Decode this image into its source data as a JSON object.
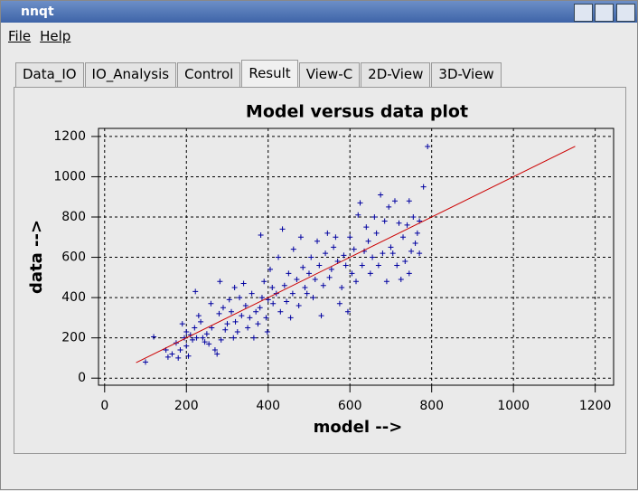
{
  "window": {
    "title": "nnqt",
    "menu": [
      "File",
      "Help"
    ],
    "tabs": [
      "Data_IO",
      "IO_Analysis",
      "Control",
      "Result",
      "View-C",
      "2D-View",
      "3D-View"
    ],
    "active_tab": "Result"
  },
  "chart_data": {
    "type": "scatter",
    "title": "Model versus data plot",
    "x_label": "model -->",
    "y_label": "data -->",
    "xlim": [
      -15,
      1245
    ],
    "ylim": [
      -35,
      1240
    ],
    "xticks": [
      0,
      200,
      400,
      600,
      800,
      1000,
      1200
    ],
    "yticks": [
      0,
      200,
      400,
      600,
      800,
      1000,
      1200
    ],
    "grid": true,
    "series": [
      {
        "mode": "markers",
        "color": "#0000a0",
        "x": [
          100,
          120,
          150,
          155,
          165,
          175,
          180,
          185,
          190,
          195,
          200,
          200,
          205,
          210,
          215,
          220,
          222,
          225,
          230,
          235,
          240,
          245,
          250,
          255,
          260,
          262,
          270,
          275,
          280,
          282,
          285,
          290,
          295,
          300,
          305,
          310,
          315,
          318,
          320,
          325,
          330,
          335,
          340,
          345,
          350,
          355,
          360,
          365,
          370,
          375,
          380,
          382,
          385,
          390,
          395,
          398,
          400,
          405,
          410,
          412,
          420,
          425,
          430,
          435,
          440,
          445,
          450,
          455,
          460,
          462,
          470,
          475,
          480,
          485,
          490,
          495,
          500,
          505,
          510,
          515,
          520,
          525,
          530,
          535,
          540,
          545,
          550,
          555,
          560,
          565,
          570,
          575,
          580,
          585,
          590,
          595,
          600,
          605,
          610,
          615,
          620,
          625,
          630,
          635,
          640,
          645,
          650,
          655,
          660,
          665,
          670,
          675,
          680,
          685,
          690,
          695,
          700,
          705,
          710,
          715,
          720,
          725,
          730,
          735,
          740,
          745,
          750,
          755,
          760,
          765,
          770,
          780,
          790,
          770,
          745
        ],
        "values": [
          80,
          205,
          140,
          105,
          120,
          175,
          100,
          140,
          270,
          200,
          160,
          230,
          110,
          215,
          190,
          250,
          430,
          200,
          310,
          280,
          200,
          180,
          220,
          170,
          370,
          250,
          140,
          120,
          320,
          480,
          190,
          350,
          240,
          270,
          390,
          330,
          200,
          450,
          280,
          230,
          400,
          310,
          470,
          360,
          250,
          300,
          420,
          200,
          330,
          270,
          350,
          710,
          400,
          480,
          300,
          230,
          390,
          540,
          450,
          370,
          420,
          600,
          330,
          740,
          460,
          380,
          520,
          300,
          420,
          640,
          490,
          360,
          700,
          550,
          450,
          420,
          520,
          600,
          400,
          490,
          680,
          560,
          310,
          460,
          620,
          720,
          500,
          540,
          650,
          700,
          580,
          370,
          450,
          610,
          560,
          330,
          700,
          520,
          640,
          480,
          810,
          870,
          560,
          630,
          750,
          680,
          520,
          600,
          800,
          720,
          560,
          910,
          620,
          780,
          480,
          850,
          650,
          620,
          880,
          560,
          770,
          490,
          700,
          580,
          760,
          520,
          630,
          800,
          670,
          720,
          780,
          950,
          1150,
          620,
          880
        ]
      },
      {
        "mode": "line",
        "color": "#cc0000",
        "x": [
          77,
          1151
        ],
        "values": [
          77,
          1151
        ]
      }
    ]
  }
}
